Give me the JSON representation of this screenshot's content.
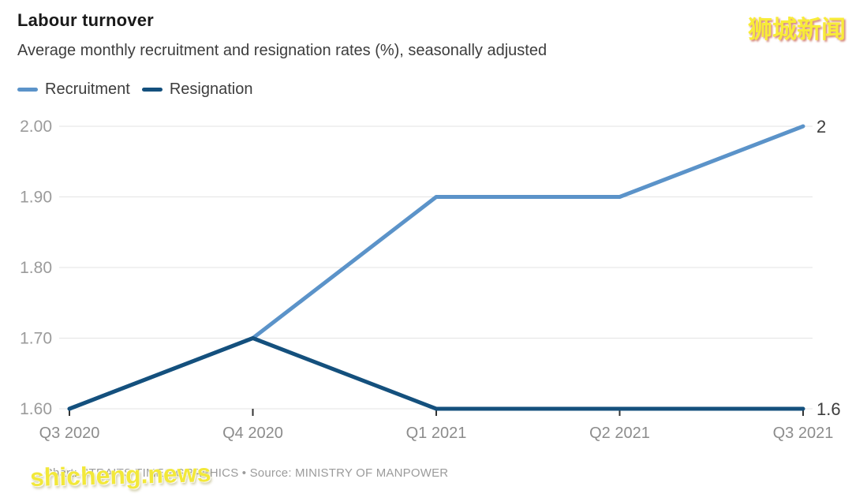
{
  "header": {
    "title": "Labour turnover",
    "subtitle": "Average monthly recruitment and resignation rates (%), seasonally adjusted"
  },
  "chart_data": {
    "type": "line",
    "title": "Labour turnover",
    "subtitle": "Average monthly recruitment and resignation rates (%), seasonally adjusted",
    "categories": [
      "Q3 2020",
      "Q4 2020",
      "Q1 2021",
      "Q2 2021",
      "Q3 2021"
    ],
    "series": [
      {
        "name": "Recruitment",
        "color": "#5b93c9",
        "values": [
          1.6,
          1.7,
          1.9,
          1.9,
          2.0
        ],
        "end_label": "2"
      },
      {
        "name": "Resignation",
        "color": "#14507d",
        "values": [
          1.6,
          1.7,
          1.6,
          1.6,
          1.6
        ],
        "end_label": "1.6"
      }
    ],
    "ylim": [
      1.6,
      2.0
    ],
    "yticks": [
      2.0,
      1.9,
      1.8,
      1.7,
      1.6
    ],
    "ytick_labels": [
      "2.00",
      "1.90",
      "1.80",
      "1.70",
      "1.60"
    ],
    "xlabel": "",
    "ylabel": "",
    "grid": "horizontal",
    "legend_position": "top-left"
  },
  "style": {
    "grid_color": "#e3e3e3",
    "ytick_color": "#9b9b9b",
    "xtick_color": "#8c8c8c",
    "tick_mark_color": "#333333",
    "end_label_color": "#3d3d3d",
    "line_width": 5
  },
  "footer": {
    "text": "Chart: STRAITS TIMES GRAPHICS • Source: MINISTRY OF MANPOWER"
  },
  "watermarks": {
    "top_right": "狮城新闻",
    "bottom_left": "shicheng.news"
  }
}
